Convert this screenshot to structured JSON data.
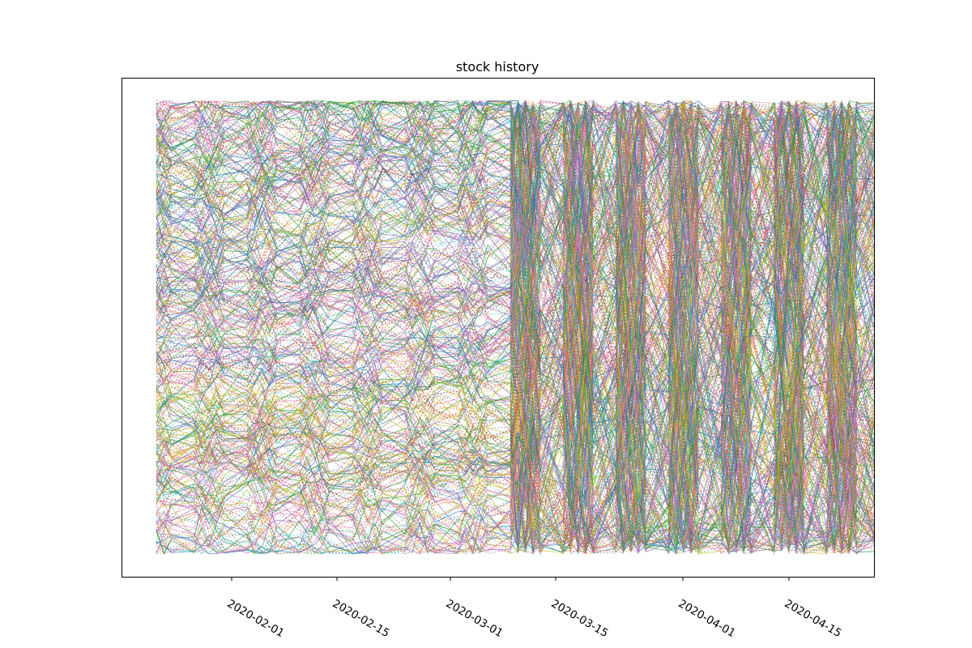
{
  "chart_data": {
    "type": "line",
    "title": "stock history",
    "xlabel": "",
    "ylabel": "",
    "x_axis": {
      "kind": "date",
      "range": [
        "2020-01-22",
        "2020-04-27"
      ],
      "tick_labels": [
        "2020-02-01",
        "2020-02-15",
        "2020-03-01",
        "2020-03-15",
        "2020-04-01",
        "2020-04-15"
      ]
    },
    "y_axis": {
      "tick_labels_visible": false,
      "range": [
        0,
        1
      ]
    },
    "grid": false,
    "legend": "none",
    "series_count_estimate": "hundreds of overlapping series (solid and dashed lines, default color cycle)",
    "color_cycle": [
      "#1f77b4",
      "#ff7f0e",
      "#2ca02c",
      "#d62728",
      "#9467bd",
      "#8c564b",
      "#e377c2",
      "#7f7f7f",
      "#bcbd22",
      "#17becf"
    ]
  }
}
